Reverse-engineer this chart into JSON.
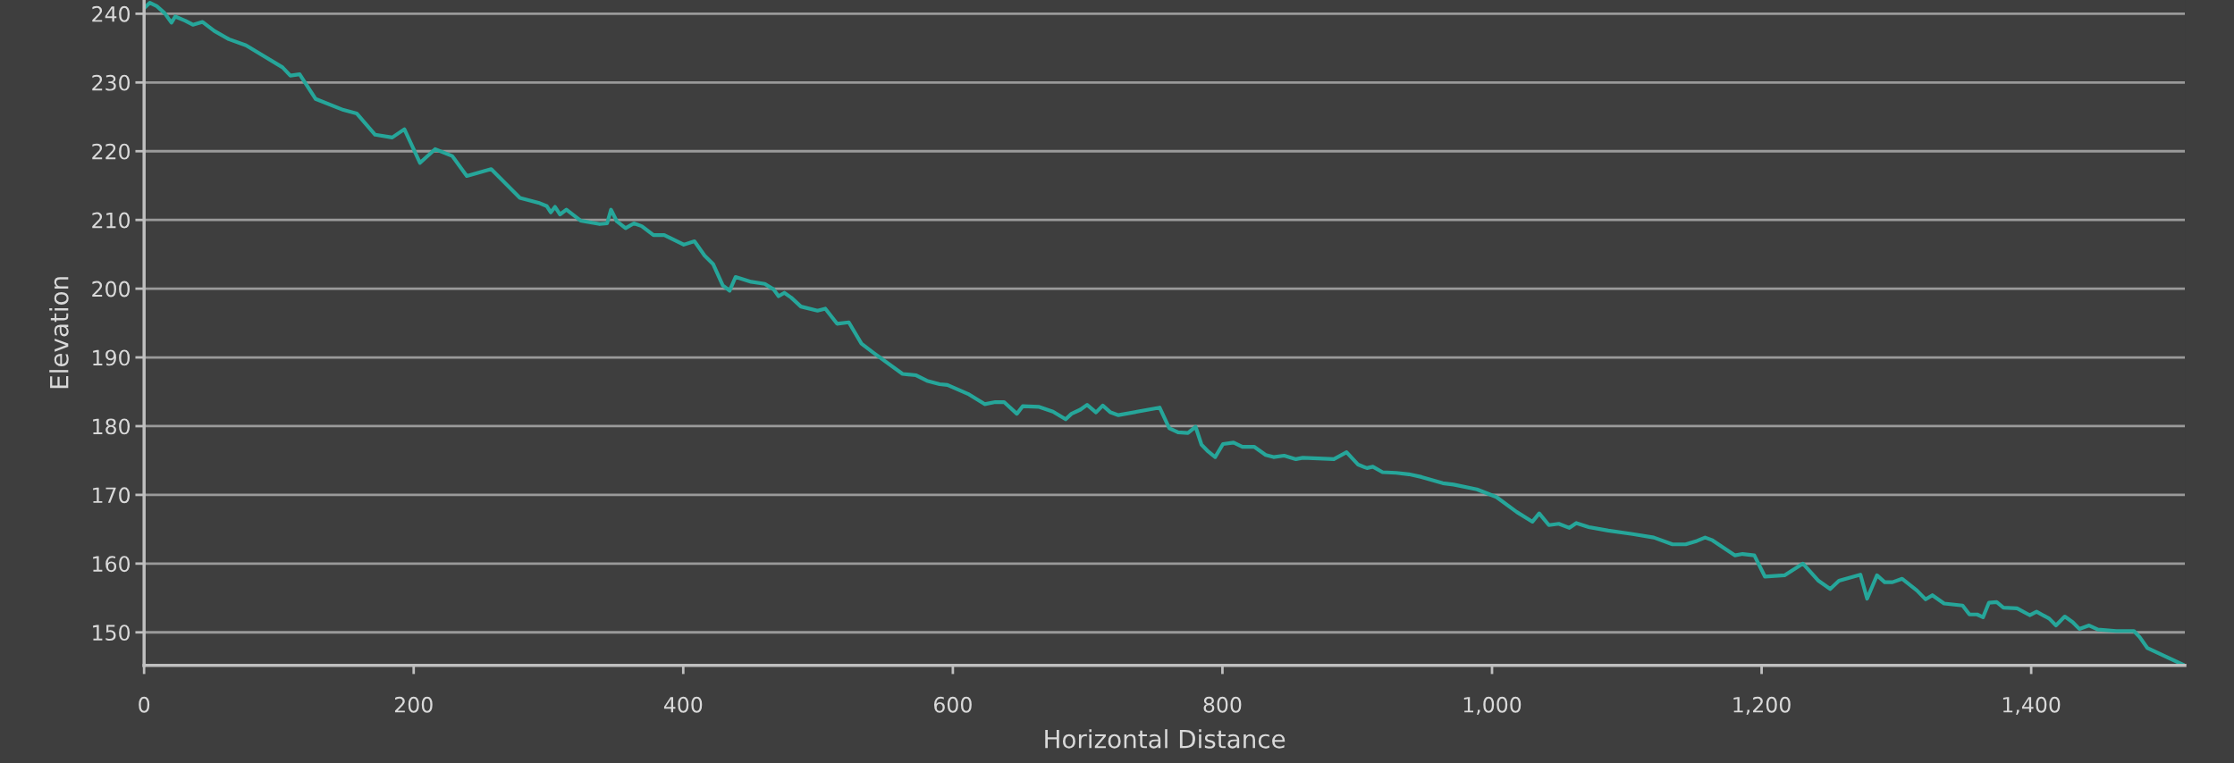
{
  "chart_data": {
    "type": "line",
    "xlabel": "Horizontal Distance",
    "ylabel": "Elevation",
    "xlim": [
      0,
      1514
    ],
    "ylim": [
      145.2,
      242
    ],
    "xticks": [
      0,
      200,
      400,
      600,
      800,
      {
        "value": 1000,
        "label": "1,000"
      },
      {
        "value": 1200,
        "label": "1,200"
      },
      {
        "value": 1400,
        "label": "1,400"
      }
    ],
    "yticks": [
      150,
      160,
      170,
      180,
      190,
      200,
      210,
      220,
      230,
      240
    ],
    "grid": "y",
    "marker": "none",
    "line_style": "solid",
    "series": [
      {
        "color": "#26a69a",
        "x": [
          0,
          4.3,
          9.4,
          15.2,
          20.3,
          23.1,
          30.4,
          36.2,
          43.4,
          52.1,
          62.9,
          75.6,
          102.7,
          108.5,
          115.4,
          127.3,
          147.9,
          157.7,
          171.4,
          184.1,
          193.1,
          204.7,
          215.9,
          228.6,
          239.4,
          257.5,
          278.8,
          292.6,
          298.8,
          301.7,
          304.9,
          308.6,
          313.3,
          323.8,
          338,
          343.5,
          346.4,
          350.7,
          357.2,
          363.4,
          369.2,
          377.9,
          385.9,
          400.4,
          408.3,
          415.9,
          422.1,
          429.3,
          434.4,
          438.8,
          450.4,
          460.5,
          467,
          470.7,
          475,
          480.1,
          487.3,
          499.6,
          505.4,
          514.1,
          522.8,
          532.2,
          540.9,
          562.7,
          572.8,
          580.8,
          590.2,
          596,
          611.2,
          623.6,
          631.5,
          638,
          647.5,
          651.8,
          664.1,
          674.3,
          683.7,
          688,
          694.6,
          699.6,
          706.2,
          711.2,
          717,
          722.8,
          753.4,
          760.6,
          767.1,
          774.4,
          780.1,
          784.5,
          789.5,
          794.6,
          800.4,
          808.3,
          814.8,
          823.5,
          832.1,
          837.9,
          845.8,
          854.5,
          859.6,
          882.7,
          892.1,
          900.7,
          907.2,
          911.6,
          918.8,
          928.9,
          938.3,
          947.7,
          963.5,
          971.5,
          988.8,
          1003.2,
          1018.4,
          1030,
          1035,
          1042.2,
          1049.5,
          1057.4,
          1062.5,
          1071.8,
          1086.3,
          1104.3,
          1120,
          1133.9,
          1143.7,
          1152,
          1158.1,
          1163.5,
          1180.1,
          1185.9,
          1194.6,
          1202.5,
          1217,
          1230.7,
          1242.2,
          1250.9,
          1257.4,
          1273.3,
          1278.3,
          1285.6,
          1291.3,
          1297.1,
          1304.3,
          1315.2,
          1321.7,
          1326.7,
          1335.4,
          1349.1,
          1354.2,
          1359.9,
          1364.3,
          1368.6,
          1374.4,
          1379.4,
          1389.5,
          1398.9,
          1404,
          1413.4,
          1418.4,
          1424.9,
          1430.7,
          1435.7,
          1443,
          1449.5,
          1463.2,
          1476.2,
          1480.5,
          1486.3,
          1513.7
        ],
        "values": [
          240.8,
          241.6,
          241.1,
          240.1,
          238.7,
          239.6,
          239,
          238.4,
          238.8,
          237.5,
          236.3,
          235.4,
          232.2,
          231,
          231.2,
          227.6,
          226,
          225.5,
          222.4,
          222,
          223.2,
          218.3,
          220.3,
          219.3,
          216.4,
          217.4,
          213.2,
          212.5,
          212,
          211.1,
          211.9,
          210.8,
          211.5,
          209.9,
          209.4,
          209.5,
          211.5,
          209.8,
          208.8,
          209.5,
          209.1,
          207.8,
          207.8,
          206.4,
          206.9,
          204.8,
          203.6,
          200.5,
          199.7,
          201.7,
          201,
          200.7,
          199.9,
          198.9,
          199.4,
          198.7,
          197.4,
          196.8,
          197.1,
          194.9,
          195.1,
          192,
          190.7,
          187.6,
          187.4,
          186.6,
          186.1,
          186,
          184.7,
          183.2,
          183.5,
          183.5,
          181.8,
          182.9,
          182.8,
          182.1,
          181,
          181.8,
          182.4,
          183.1,
          182,
          183,
          182,
          181.6,
          182.7,
          179.7,
          179.1,
          179,
          179.9,
          177.3,
          176.3,
          175.5,
          177.4,
          177.6,
          177,
          177,
          175.8,
          175.5,
          175.7,
          175.2,
          175.4,
          175.2,
          176.2,
          174.4,
          173.9,
          174.1,
          173.3,
          173.2,
          173,
          172.6,
          171.7,
          171.5,
          170.8,
          169.7,
          167.5,
          166.1,
          167.3,
          165.6,
          165.8,
          165.2,
          165.9,
          165.3,
          164.8,
          164.3,
          163.8,
          162.8,
          162.8,
          163.3,
          163.8,
          163.4,
          161.2,
          161.4,
          161.2,
          158.1,
          158.3,
          160,
          157.5,
          156.3,
          157.5,
          158.4,
          154.9,
          158.3,
          157.3,
          157.3,
          157.8,
          156.1,
          154.8,
          155.4,
          154.2,
          153.9,
          152.6,
          152.6,
          152.2,
          154.3,
          154.4,
          153.6,
          153.5,
          152.5,
          153,
          152,
          151,
          152.3,
          151.5,
          150.5,
          151,
          150.4,
          150.2,
          150.2,
          149.3,
          147.7,
          145.2
        ]
      }
    ]
  }
}
